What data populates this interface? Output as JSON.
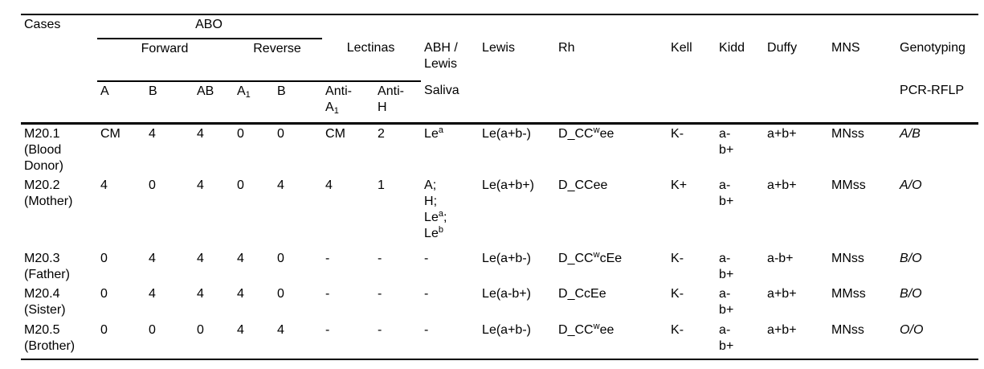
{
  "table": {
    "header": {
      "cases": "Cases",
      "abo": "ABO",
      "forward": "Forward",
      "reverse": "Reverse",
      "lectinas": "Lectinas",
      "abh_lewis": [
        {
          "t": "ABH /"
        },
        {
          "br": true
        },
        {
          "t": "Lewis"
        }
      ],
      "lewis": "Lewis",
      "rh": "Rh",
      "kell": "Kell",
      "kidd": "Kidd",
      "duffy": "Duffy",
      "mns": "MNS",
      "genotyping": "Genotyping",
      "sub": {
        "a": "A",
        "b": "B",
        "ab": "AB",
        "a1": [
          {
            "t": "A"
          },
          {
            "sub": "1"
          }
        ],
        "b2": "B",
        "anti_a1": [
          {
            "t": "Anti-"
          },
          {
            "br": true
          },
          {
            "t": "A"
          },
          {
            "sub": "1"
          }
        ],
        "anti_h": [
          {
            "t": "Anti-"
          },
          {
            "br": true
          },
          {
            "t": "H"
          }
        ],
        "saliva": "Saliva",
        "pcr_rflp": "PCR-RFLP"
      }
    },
    "rows": [
      {
        "case": [
          {
            "t": "M20.1"
          },
          {
            "br": true
          },
          {
            "t": "(Blood"
          },
          {
            "br": true
          },
          {
            "t": "Donor)"
          }
        ],
        "a": "CM",
        "b": "4",
        "ab": "4",
        "a1": "0",
        "b2": "0",
        "anti_a1": "CM",
        "anti_h": "2",
        "saliva": [
          {
            "t": "Le"
          },
          {
            "sup": "a"
          }
        ],
        "lewis": "Le(a+b-)",
        "rh": [
          {
            "t": "D_CC"
          },
          {
            "sup": "w"
          },
          {
            "t": "ee"
          }
        ],
        "kell": "K-",
        "kidd": [
          {
            "t": "a-"
          },
          {
            "br": true
          },
          {
            "t": "b+"
          }
        ],
        "duffy": "a+b+",
        "mns": "MNss",
        "genotyping": "A/B"
      },
      {
        "case": [
          {
            "t": "M20.2"
          },
          {
            "br": true
          },
          {
            "t": "(Mother)"
          }
        ],
        "a": "4",
        "b": "0",
        "ab": "4",
        "a1": "0",
        "b2": "4",
        "anti_a1": "4",
        "anti_h": "1",
        "saliva": [
          {
            "t": "A;"
          },
          {
            "br": true
          },
          {
            "t": "H;"
          },
          {
            "br": true
          },
          {
            "t": "Le"
          },
          {
            "sup": "a"
          },
          {
            "t": ";"
          },
          {
            "br": true
          },
          {
            "t": "Le"
          },
          {
            "sup": "b"
          }
        ],
        "lewis": "Le(a+b+)",
        "rh": "D_CCee",
        "kell": "K+",
        "kidd": [
          {
            "t": "a-"
          },
          {
            "br": true
          },
          {
            "t": "b+"
          }
        ],
        "duffy": "a+b+",
        "mns": "MMss",
        "genotyping": "A/O"
      },
      {
        "case": [
          {
            "t": "M20.3"
          },
          {
            "br": true
          },
          {
            "t": "(Father)"
          }
        ],
        "a": "0",
        "b": "4",
        "ab": "4",
        "a1": "4",
        "b2": "0",
        "anti_a1": "-",
        "anti_h": "-",
        "saliva": "-",
        "lewis": "Le(a+b-)",
        "rh": [
          {
            "t": "D_CC"
          },
          {
            "sup": "w"
          },
          {
            "t": "cEe"
          }
        ],
        "kell": "K-",
        "kidd": [
          {
            "t": "a-"
          },
          {
            "br": true
          },
          {
            "t": "b+"
          }
        ],
        "duffy": "a-b+",
        "mns": "MNss",
        "genotyping": "B/O"
      },
      {
        "case": [
          {
            "t": "M20.4"
          },
          {
            "br": true
          },
          {
            "t": "(Sister)"
          }
        ],
        "a": "0",
        "b": "4",
        "ab": "4",
        "a1": "4",
        "b2": "0",
        "anti_a1": "-",
        "anti_h": "-",
        "saliva": "-",
        "lewis": "Le(a-b+)",
        "rh": "D_CcEe",
        "kell": "K-",
        "kidd": [
          {
            "t": "a-"
          },
          {
            "br": true
          },
          {
            "t": "b+"
          }
        ],
        "duffy": "a+b+",
        "mns": "MMss",
        "genotyping": "B/O"
      },
      {
        "case": [
          {
            "t": "M20.5"
          },
          {
            "br": true
          },
          {
            "t": "(Brother)"
          }
        ],
        "a": "0",
        "b": "0",
        "ab": "0",
        "a1": "4",
        "b2": "4",
        "anti_a1": "-",
        "anti_h": "-",
        "saliva": "-",
        "lewis": "Le(a+b-)",
        "rh": [
          {
            "t": "D_CC"
          },
          {
            "sup": "w"
          },
          {
            "t": "ee"
          }
        ],
        "kell": "K-",
        "kidd": [
          {
            "t": "a-"
          },
          {
            "br": true
          },
          {
            "t": "b+"
          }
        ],
        "duffy": "a+b+",
        "mns": "MNss",
        "genotyping": "O/O"
      }
    ]
  }
}
